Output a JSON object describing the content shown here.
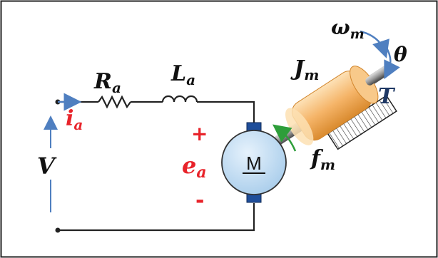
{
  "labels": {
    "resistance": {
      "main": "R",
      "sub": "a"
    },
    "inductance": {
      "main": "L",
      "sub": "a"
    },
    "current": {
      "main": "i",
      "sub": "a"
    },
    "voltage": "V",
    "emf": {
      "main": "e",
      "sub": "a"
    },
    "emf_plus": "+",
    "emf_minus": "-",
    "motor": "M",
    "inertia": {
      "main": "J",
      "sub": "m"
    },
    "speed": {
      "main": "ω",
      "sub": "m"
    },
    "angle": "θ",
    "torque": "T",
    "friction": {
      "main": "f",
      "sub": "m"
    }
  },
  "colors": {
    "wire": "#222222",
    "red_label": "#e8232a",
    "arrow_blue": "#4f7fc0",
    "motor_fill": "#bfdcf5",
    "brush": "#1f4e9a",
    "rotor_orange": "#f5b468",
    "friction_green": "#2e9e3a"
  }
}
